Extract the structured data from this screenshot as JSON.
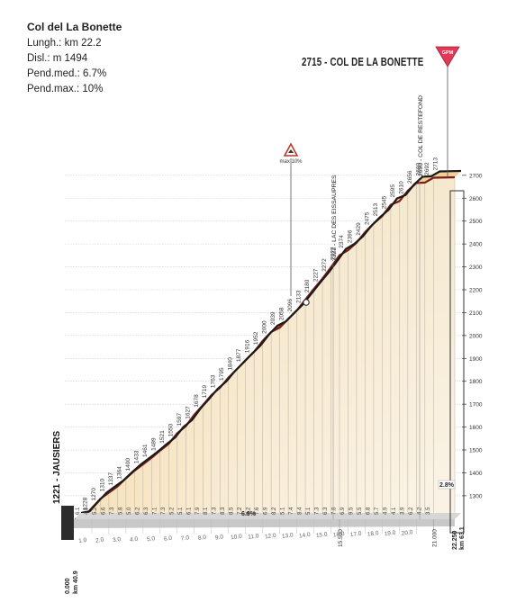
{
  "climb": {
    "title": "Col del La Bonette",
    "length": "Lungh.: km 22.2",
    "elevation_gain": "Disl.: m 1494",
    "avg_gradient": "Pend.med.: 6.7%",
    "max_gradient": "Pend.max.: 10%"
  },
  "summit": {
    "label": "2715 - COL DE LA BONETTE",
    "badge": "GPM"
  },
  "max_marker": {
    "label": "max 10%"
  },
  "start": {
    "label": "1221 - JAUSIERS",
    "km_label": "0.000",
    "km_race": "km 40.9"
  },
  "finish": {
    "km_label": "22.250",
    "km_race": "km 63.1"
  },
  "extra_km_labels": [
    "15.500",
    "21.000"
  ],
  "gradient_labels": [
    "6.9%",
    "2.8%"
  ],
  "landmarks": [
    "2322 - LAC DES EISSAUPRES",
    "2690 - COL DE RESTEFOND"
  ],
  "chart_data": {
    "type": "area",
    "x_unit": "km",
    "y_unit": "m",
    "xlim": [
      0,
      22.25
    ],
    "ylim": [
      1221,
      2715
    ],
    "x_ticks": [
      "1.0",
      "2.0",
      "3.0",
      "4.0",
      "5.0",
      "6.0",
      "7.0",
      "8.0",
      "9.0",
      "10.0",
      "11.0",
      "12.0",
      "13.0",
      "14.0",
      "15.0",
      "16.0",
      "17.0",
      "18.0",
      "19.0",
      "20.0"
    ],
    "y_ticks": [
      "1300",
      "1400",
      "1500",
      "1600",
      "1700",
      "1800",
      "1900",
      "2000",
      "2100",
      "2200",
      "2300",
      "2400",
      "2500",
      "2600",
      "2700"
    ],
    "profile": [
      [
        0,
        1221
      ],
      [
        0.5,
        1228
      ],
      [
        1.0,
        1270
      ],
      [
        1.5,
        1310
      ],
      [
        2.0,
        1337
      ],
      [
        2.5,
        1364
      ],
      [
        3.0,
        1400
      ],
      [
        3.5,
        1433
      ],
      [
        4.0,
        1461
      ],
      [
        4.5,
        1489
      ],
      [
        5.0,
        1521
      ],
      [
        5.5,
        1550
      ],
      [
        6.0,
        1597
      ],
      [
        6.5,
        1627
      ],
      [
        7.0,
        1678
      ],
      [
        7.5,
        1719
      ],
      [
        8.0,
        1763
      ],
      [
        8.5,
        1795
      ],
      [
        9.0,
        1840
      ],
      [
        9.5,
        1877
      ],
      [
        10.0,
        1916
      ],
      [
        10.5,
        1952
      ],
      [
        11.0,
        2000
      ],
      [
        11.5,
        2039
      ],
      [
        12.0,
        2058
      ],
      [
        12.5,
        2096
      ],
      [
        13.0,
        2133
      ],
      [
        13.5,
        2180
      ],
      [
        14.0,
        2227
      ],
      [
        14.5,
        2272
      ],
      [
        15.0,
        2322
      ],
      [
        15.5,
        2374
      ],
      [
        16.0,
        2396
      ],
      [
        16.5,
        2429
      ],
      [
        17.0,
        2475
      ],
      [
        17.5,
        2513
      ],
      [
        18.0,
        2545
      ],
      [
        18.5,
        2595
      ],
      [
        19.0,
        2610
      ],
      [
        19.5,
        2656
      ],
      [
        20.0,
        2690
      ],
      [
        20.5,
        2692
      ],
      [
        21.0,
        2713
      ],
      [
        22.25,
        2715
      ]
    ],
    "altitude_labels": [
      "1228",
      "1270",
      "1310",
      "1337",
      "1364",
      "1400",
      "1433",
      "1461",
      "1489",
      "1521",
      "1550",
      "1597",
      "1627",
      "1678",
      "1719",
      "1763",
      "1795",
      "1840",
      "1877",
      "1916",
      "1952",
      "2000",
      "2039",
      "2058",
      "2096",
      "2133",
      "2180",
      "2227",
      "2272",
      "2322",
      "2374",
      "2396",
      "2429",
      "2475",
      "2513",
      "2545",
      "2595",
      "2610",
      "2656",
      "2690",
      "2692",
      "2713"
    ],
    "gradients_per_km": [
      "6.1",
      "4.9",
      "5.2",
      "6.6",
      "7.3",
      "5.8",
      "5.0",
      "6.2",
      "6.3",
      "7.1",
      "7.3",
      "5.2",
      "5.1",
      "6.1",
      "7.9",
      "8.1",
      "7.3",
      "8.3",
      "8.5",
      "7.2",
      "9.2",
      "7.6",
      "6.9",
      "8.2",
      "5.1",
      "7.4",
      "8.4",
      "5.1",
      "7.3",
      "6.3",
      "7.8",
      "6.9",
      "9.5",
      "5.5",
      "6.8",
      "5.7",
      "4.9",
      "4.1",
      "3.9",
      "6.2",
      "4.2",
      "3.5"
    ]
  }
}
